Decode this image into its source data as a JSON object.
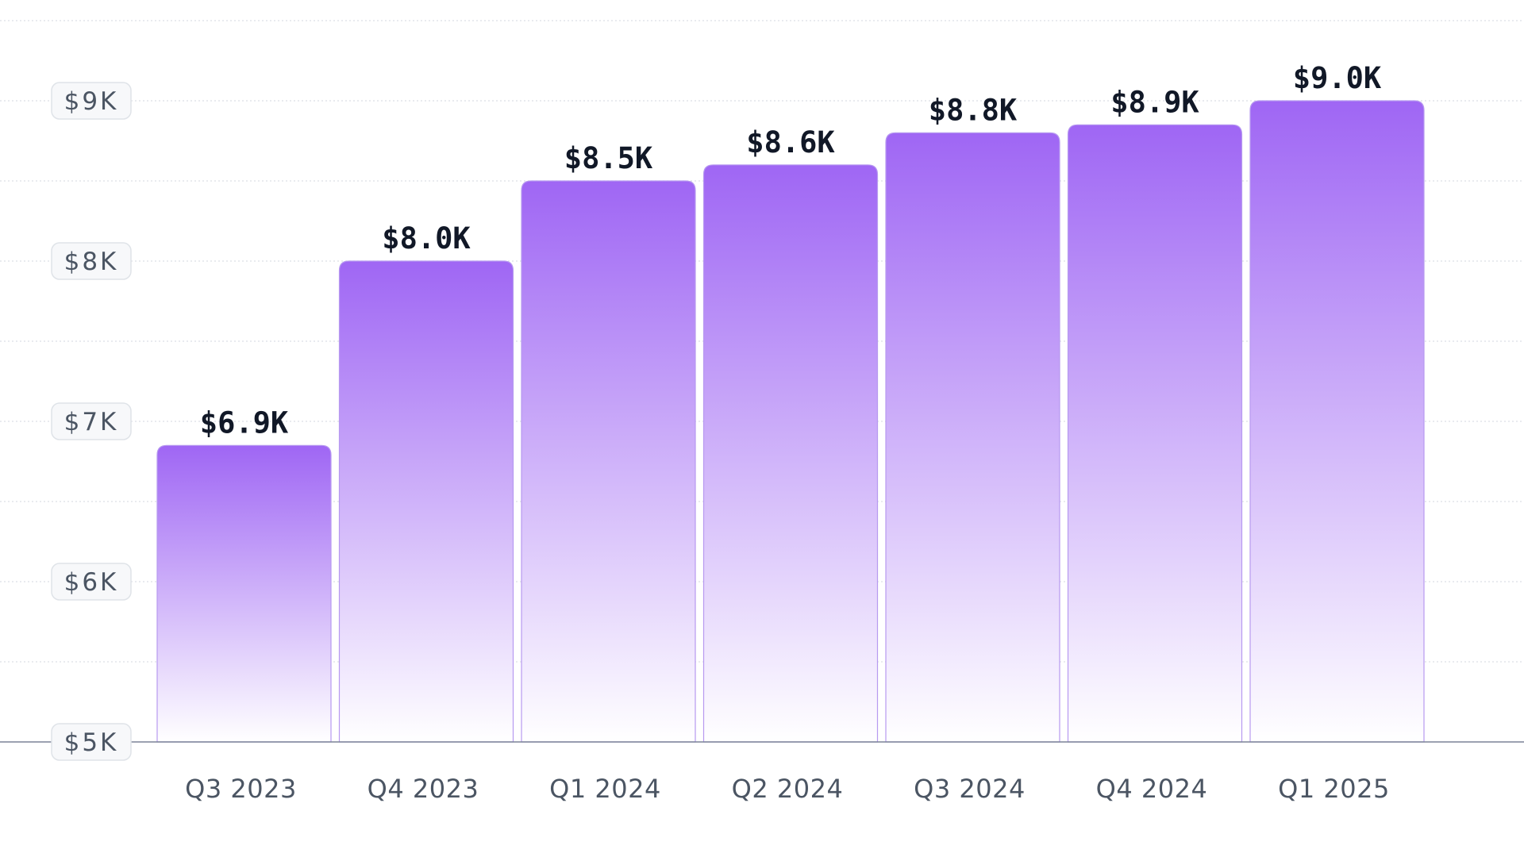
{
  "chart_data": {
    "type": "bar",
    "categories": [
      "Q3 2023",
      "Q4 2023",
      "Q1 2024",
      "Q2 2024",
      "Q3 2024",
      "Q4 2024",
      "Q1 2025"
    ],
    "values": [
      6.85,
      8.0,
      8.5,
      8.6,
      8.8,
      8.85,
      9.0
    ],
    "data_labels": [
      "$6.9K",
      "$8.0K",
      "$8.5K",
      "$8.6K",
      "$8.8K",
      "$8.9K",
      "$9.0K"
    ],
    "title": "",
    "xlabel": "",
    "ylabel": "",
    "ylim": [
      5,
      9.5
    ],
    "y_ticks": [
      5,
      6,
      7,
      8,
      9
    ],
    "y_tick_labels": [
      "$5K",
      "$6K",
      "$7K",
      "$8K",
      "$9K"
    ],
    "grid": true,
    "legend": "none",
    "colors": {
      "bar_top": "#9f66f4",
      "bar_bottom": "#ffffff",
      "bar_stroke": "#b79af0",
      "grid": "#dcdfe5",
      "axis": "#7b8497",
      "tick_badge_fill": "#f7f8fa",
      "tick_badge_stroke": "#dfe3e8"
    }
  }
}
